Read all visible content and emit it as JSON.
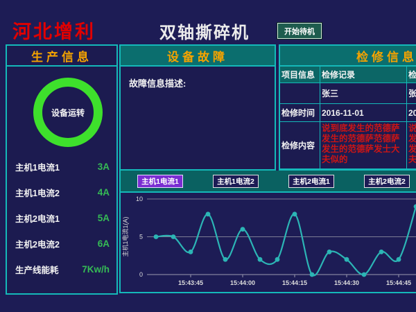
{
  "header": {
    "company": "河北增利",
    "title": "双轴撕碎机",
    "standby_button": "开始待机"
  },
  "production": {
    "title": "生产信息",
    "status_ring_label": "设备运转",
    "rows": [
      {
        "label": "主机1电流1",
        "value": "3A"
      },
      {
        "label": "主机1电流2",
        "value": "4A"
      },
      {
        "label": "主机2电流1",
        "value": "5A"
      },
      {
        "label": "主机2电流2",
        "value": "6A"
      },
      {
        "label": "生产线能耗",
        "value": "7Kw/h"
      }
    ]
  },
  "fault": {
    "title": "设备故障",
    "description_label": "故障信息描述:"
  },
  "maintenance": {
    "title": "检修信息",
    "rows": [
      {
        "label": "项目信息",
        "value": "检修记录"
      },
      {
        "label": "",
        "value": "张三"
      },
      {
        "label": "检修时间",
        "value": "2016-11-01"
      },
      {
        "label": "检修内容",
        "value": "说到底发生的范德萨发生的范德萨范德萨发生的范德萨发士大夫似的"
      }
    ]
  },
  "trend": {
    "buttons": [
      {
        "label": "主机1电流1",
        "active": true
      },
      {
        "label": "主机1电流2",
        "active": false
      },
      {
        "label": "主机2电流1",
        "active": false
      },
      {
        "label": "主机2电流2",
        "active": false
      }
    ]
  },
  "colors": {
    "accent_cyan": "#14b9b9",
    "header_orange": "#f5a300",
    "brand_red": "#e00000",
    "value_green": "#35bb55",
    "ring_green": "#3ee02c",
    "active_purple": "#7a2ed2",
    "alert_red": "#cc1515",
    "line_teal": "#2cb5b5"
  },
  "chart_data": {
    "type": "line",
    "x": [
      "15:43:35",
      "15:43:40",
      "15:43:45",
      "15:43:50",
      "15:43:55",
      "15:44:00",
      "15:44:05",
      "15:44:10",
      "15:44:15",
      "15:44:20",
      "15:44:25",
      "15:44:30",
      "15:44:35",
      "15:44:40",
      "15:44:45",
      "15:44:50"
    ],
    "values": [
      5,
      5,
      3,
      8,
      2,
      6,
      2,
      2,
      8,
      0,
      3,
      2,
      0,
      3,
      2,
      9
    ],
    "ylabel": "主机1电流1(A)",
    "yticks": [
      0,
      5,
      10
    ],
    "ylim": [
      0,
      10
    ],
    "xticklabels": [
      "15:43:45",
      "15:44:00",
      "15:44:15",
      "15:44:30",
      "15:44:45"
    ],
    "grid": true,
    "legend": "none",
    "line_color": "#2cb5b5",
    "marker": "circle"
  }
}
